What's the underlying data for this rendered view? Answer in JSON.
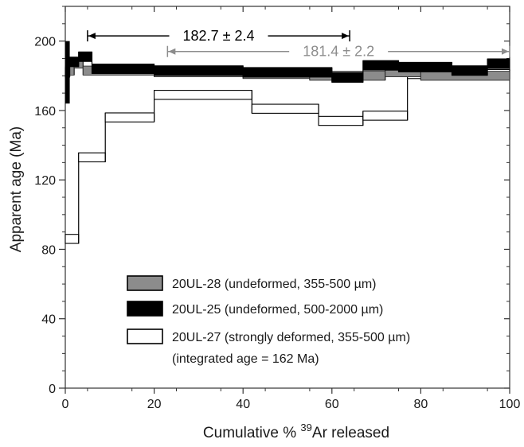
{
  "chart_data": {
    "type": "step",
    "xlabel_prefix": "Cumulative % ",
    "xlabel_sup": "39",
    "xlabel_suffix": "Ar released",
    "ylabel": "Apparent age (Ma)",
    "xlim": [
      0,
      100
    ],
    "ylim": [
      0,
      220
    ],
    "xticks": [
      0,
      20,
      40,
      60,
      80,
      100
    ],
    "yticks": [
      0,
      40,
      80,
      120,
      160,
      200
    ],
    "grid": false,
    "legend_position": "lower-center",
    "series": [
      {
        "name": "20UL-27 (strongly deformed, 355-500 µm)",
        "note": "(integrated age = 162 Ma)",
        "style": "open",
        "color": "#ffffff",
        "steps": [
          {
            "x0": 0,
            "x1": 3,
            "y": 86
          },
          {
            "x0": 3,
            "x1": 9,
            "y": 133
          },
          {
            "x0": 9,
            "x1": 20,
            "y": 156
          },
          {
            "x0": 20,
            "x1": 42,
            "y": 169
          },
          {
            "x0": 42,
            "x1": 57,
            "y": 161
          },
          {
            "x0": 57,
            "x1": 67,
            "y": 154
          },
          {
            "x0": 67,
            "x1": 77,
            "y": 157
          },
          {
            "x0": 77,
            "x1": 100,
            "y": 181
          }
        ]
      },
      {
        "name": "20UL-28 (undeformed,  355-500 µm)",
        "style": "gray",
        "color": "#8c8c8c",
        "steps": [
          {
            "x0": 0,
            "x1": 2,
            "y": 183
          },
          {
            "x0": 2,
            "x1": 4,
            "y": 187
          },
          {
            "x0": 4,
            "x1": 20,
            "y": 183
          },
          {
            "x0": 20,
            "x1": 40,
            "y": 182
          },
          {
            "x0": 40,
            "x1": 55,
            "y": 181
          },
          {
            "x0": 55,
            "x1": 72,
            "y": 180
          },
          {
            "x0": 72,
            "x1": 80,
            "y": 182
          },
          {
            "x0": 80,
            "x1": 100,
            "y": 180
          }
        ]
      },
      {
        "name": "20UL-25 (undeformed, 500-2000 µm)",
        "style": "black",
        "color": "#000000",
        "steps": [
          {
            "x0": 0,
            "x1": 1,
            "y": 182
          },
          {
            "x0": 1,
            "x1": 3,
            "y": 188
          },
          {
            "x0": 3,
            "x1": 6,
            "y": 191
          },
          {
            "x0": 6,
            "x1": 20,
            "y": 184
          },
          {
            "x0": 20,
            "x1": 40,
            "y": 183
          },
          {
            "x0": 40,
            "x1": 60,
            "y": 182
          },
          {
            "x0": 60,
            "x1": 67,
            "y": 179
          },
          {
            "x0": 67,
            "x1": 75,
            "y": 186
          },
          {
            "x0": 75,
            "x1": 87,
            "y": 185
          },
          {
            "x0": 87,
            "x1": 95,
            "y": 183
          },
          {
            "x0": 95,
            "x1": 100,
            "y": 187
          }
        ]
      }
    ],
    "plateaus": [
      {
        "label": "182.7 ± 2.4",
        "x0": 5,
        "x1": 64,
        "y": 203,
        "color": "#000000"
      },
      {
        "label": "181.4 ± 2.2",
        "x0": 23,
        "x1": 100,
        "y": 194,
        "color": "#8c8c8c"
      }
    ]
  }
}
